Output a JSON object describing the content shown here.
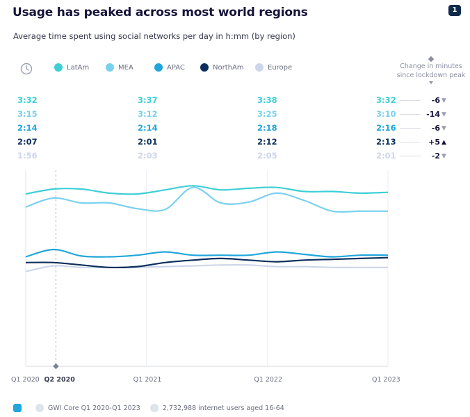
{
  "header": {
    "title": "Usage has peaked across most world regions",
    "badge": "1",
    "subtitle": "Average time spent using social networks per day in h:mm (by region)"
  },
  "change_header": {
    "line1": "Change in minutes",
    "line2": "since lockdown peak"
  },
  "footer": {
    "source": "GWI Core Q1 2020-Q1 2023",
    "sample": "2,732,988 internet users aged 16-64"
  },
  "colors": {
    "LatAm": "#3ecfd6",
    "MEA": "#7ad1ee",
    "APAC": "#20a6db",
    "NorthAm": "#0d2f5c",
    "Europe": "#cdd6ea"
  },
  "chart_data": {
    "type": "line",
    "title": "Usage has peaked across most world regions",
    "subtitle": "Average time spent using social networks per day in h:mm (by region)",
    "x_ticks": [
      "Q1 2020",
      "Q2 2020",
      "Q1 2021",
      "Q1 2022",
      "Q1 2023"
    ],
    "highlight_tick": "Q2 2020",
    "ylim": [
      0,
      240
    ],
    "y_unit": "minutes",
    "series": [
      {
        "name": "LatAm",
        "labels": [
          "3:32",
          "3:37",
          "3:38",
          "3:32"
        ],
        "change": "-6",
        "direction": "down",
        "values": [
          211,
          217,
          217,
          212,
          211,
          216,
          221,
          216,
          218,
          219,
          214,
          214,
          212,
          213
        ]
      },
      {
        "name": "MEA",
        "labels": [
          "3:15",
          "3:12",
          "3:25",
          "3:10"
        ],
        "change": "-14",
        "direction": "down",
        "values": [
          195,
          206,
          200,
          200,
          193,
          192,
          219,
          200,
          201,
          212,
          203,
          190,
          190,
          190
        ]
      },
      {
        "name": "APAC",
        "labels": [
          "2:14",
          "2:14",
          "2:18",
          "2:16"
        ],
        "change": "-6",
        "direction": "down",
        "values": [
          134,
          143,
          135,
          134,
          136,
          140,
          136,
          136,
          136,
          140,
          137,
          134,
          136,
          136
        ]
      },
      {
        "name": "NorthAm",
        "labels": [
          "2:07",
          "2:01",
          "2:12",
          "2:13"
        ],
        "change": "+5",
        "direction": "up",
        "values": [
          127,
          127,
          124,
          121,
          122,
          127,
          130,
          132,
          130,
          128,
          130,
          131,
          132,
          133
        ]
      },
      {
        "name": "Europe",
        "labels": [
          "1:56",
          "2:03",
          "2:05",
          "2:01"
        ],
        "change": "-2",
        "direction": "down",
        "values": [
          116,
          123,
          121,
          121,
          121,
          122,
          123,
          124,
          124,
          122,
          122,
          121,
          121,
          121
        ]
      }
    ]
  }
}
